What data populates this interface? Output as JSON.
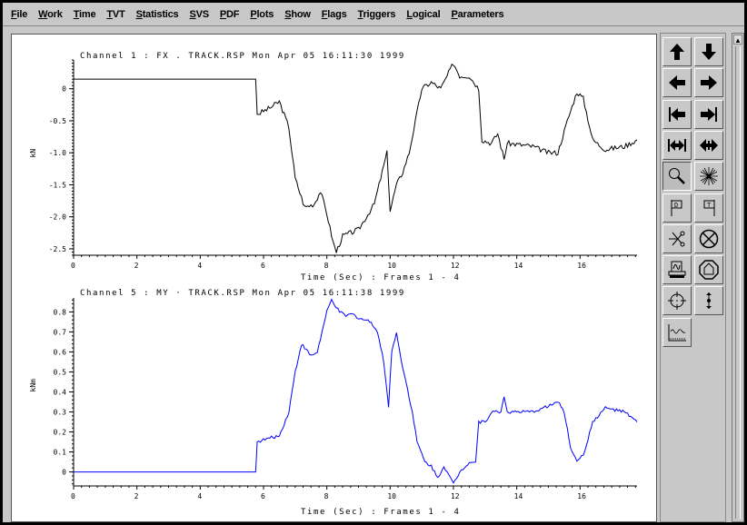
{
  "menu": [
    "File",
    "Work",
    "Time",
    "TVT",
    "Statistics",
    "SVS",
    "PDF",
    "Plots",
    "Show",
    "Flags",
    "Triggers",
    "Logical",
    "Parameters"
  ],
  "toolbar": [
    "arrow-up",
    "arrow-down",
    "arrow-left",
    "arrow-right",
    "arrow-to-left-bar",
    "arrow-to-right-bar",
    "expand-horizontal",
    "contract-horizontal",
    "zoom-magnifier",
    "burst-zoom-out",
    "flag-d",
    "flag-t",
    "scissors-cut",
    "delete-circle-x",
    "print",
    "stop-sign",
    "crosshair-target",
    "vertical-cursor",
    "waveform-plot"
  ],
  "chart_data": [
    {
      "type": "line",
      "title": "Channel 1 : FX . TRACK.RSP Mon Apr 05 16:11:30 1999",
      "xlabel": "Time (Sec) : Frames 1 - 4",
      "ylabel": "kN",
      "xlim": [
        0,
        17.8
      ],
      "ylim": [
        -2.6,
        0.45
      ],
      "xticks": [
        "0",
        "2",
        "4",
        "6",
        "8",
        "10",
        "12",
        "14",
        "16"
      ],
      "yticks": [
        "0",
        "-0.5",
        "-1.0",
        "-1.5",
        "-2.0",
        "-2.5"
      ],
      "color": "#000000",
      "x": [
        0,
        5.75,
        5.8,
        6.2,
        6.5,
        6.8,
        7.0,
        7.3,
        7.6,
        7.8,
        8.0,
        8.2,
        8.3,
        8.5,
        9.0,
        9.5,
        9.8,
        9.9,
        10.0,
        10.2,
        10.4,
        10.6,
        10.8,
        11.0,
        11.3,
        11.6,
        11.8,
        12.0,
        12.2,
        12.5,
        12.8,
        12.9,
        13.2,
        13.4,
        13.6,
        13.7,
        14.5,
        15.0,
        15.3,
        15.6,
        15.9,
        16.1,
        16.4,
        16.8,
        17.4,
        17.8
      ],
      "y": [
        0.15,
        0.15,
        -0.4,
        -0.3,
        -0.2,
        -0.6,
        -1.4,
        -1.85,
        -1.8,
        -1.6,
        -1.95,
        -2.4,
        -2.55,
        -2.3,
        -2.2,
        -1.8,
        -1.2,
        -1.0,
        -1.9,
        -1.5,
        -1.3,
        -1.0,
        -0.5,
        0.0,
        0.1,
        0.0,
        0.2,
        0.4,
        0.2,
        0.2,
        0.0,
        -0.8,
        -0.85,
        -0.7,
        -1.1,
        -0.85,
        -0.9,
        -1.0,
        -1.0,
        -0.5,
        -0.05,
        -0.15,
        -0.8,
        -0.95,
        -0.9,
        -0.8
      ]
    },
    {
      "type": "line",
      "title": "Channel 5 : MY · TRACK.RSP Mon Apr 05 16:11:38 1999",
      "xlabel": "Time (Sec) : Frames 1 - 4",
      "ylabel": "kNm",
      "xlim": [
        0,
        17.8
      ],
      "ylim": [
        -0.07,
        0.87
      ],
      "xticks": [
        "0",
        "2",
        "4",
        "6",
        "8",
        "10",
        "12",
        "14",
        "16"
      ],
      "yticks": [
        "0.8",
        "0.7",
        "0.6",
        "0.5",
        "0.4",
        "0.3",
        "0.2",
        "0.1",
        "0"
      ],
      "color": "#0000ff",
      "x": [
        0,
        5.75,
        5.8,
        6.2,
        6.5,
        6.8,
        7.0,
        7.2,
        7.5,
        7.7,
        8.0,
        8.15,
        8.4,
        8.6,
        8.8,
        9.0,
        9.4,
        9.6,
        9.8,
        9.95,
        10.05,
        10.2,
        10.3,
        10.5,
        10.7,
        10.85,
        11.1,
        11.3,
        11.5,
        11.7,
        11.9,
        12.0,
        12.2,
        12.5,
        12.7,
        12.8,
        13.0,
        13.2,
        13.5,
        13.6,
        13.7,
        14.5,
        15.0,
        15.3,
        15.5,
        15.7,
        15.9,
        16.1,
        16.4,
        16.8,
        17.4,
        17.8
      ],
      "y": [
        0,
        0,
        0.15,
        0.17,
        0.18,
        0.3,
        0.5,
        0.64,
        0.58,
        0.6,
        0.8,
        0.86,
        0.8,
        0.78,
        0.79,
        0.77,
        0.75,
        0.7,
        0.55,
        0.33,
        0.6,
        0.7,
        0.6,
        0.45,
        0.3,
        0.15,
        0.05,
        0.03,
        -0.03,
        0.03,
        -0.03,
        -0.06,
        0.0,
        0.05,
        0.05,
        0.25,
        0.25,
        0.3,
        0.3,
        0.38,
        0.3,
        0.3,
        0.33,
        0.35,
        0.3,
        0.12,
        0.06,
        0.08,
        0.25,
        0.32,
        0.3,
        0.25
      ]
    }
  ]
}
